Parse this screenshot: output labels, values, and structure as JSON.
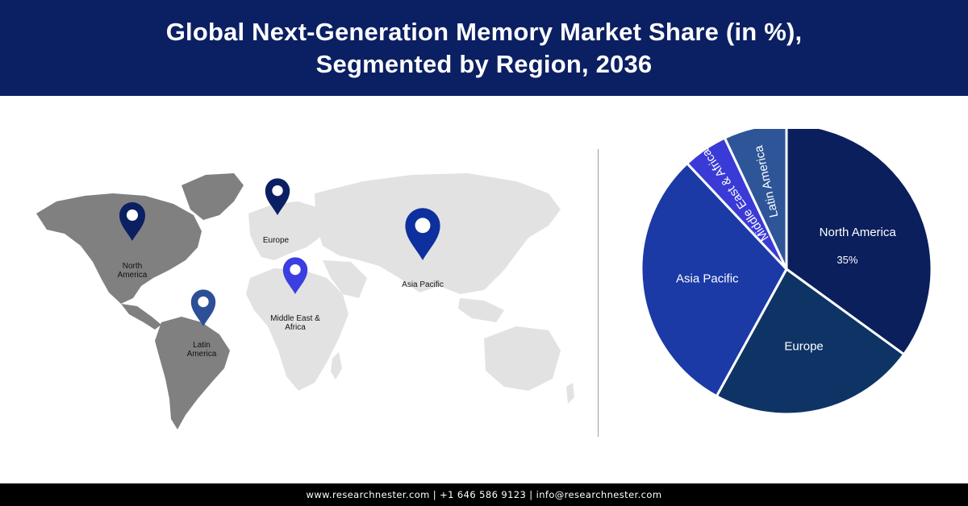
{
  "header": {
    "title_line1": "Global Next-Generation Memory Market Share (in %),",
    "title_line2": "Segmented by Region, 2036"
  },
  "map": {
    "pins": [
      {
        "name": "north-america",
        "label_lines": [
          "North",
          "America"
        ],
        "color": "#0b1f63"
      },
      {
        "name": "europe",
        "label_lines": [
          "Europe"
        ],
        "color": "#0b1f63"
      },
      {
        "name": "asia-pacific",
        "label_lines": [
          "Asia Pacific"
        ],
        "color": "#0e2f9e"
      },
      {
        "name": "middle-east-africa",
        "label_lines": [
          "Middle East &",
          "Africa"
        ],
        "color": "#3b3ee0"
      },
      {
        "name": "latin-america",
        "label_lines": [
          "Latin",
          "America"
        ],
        "color": "#2d4f96"
      }
    ]
  },
  "chart_data": {
    "type": "pie",
    "title": "Global Next-Generation Memory Market Share (in %), Segmented by Region, 2036",
    "slices": [
      {
        "label": "North America",
        "value": 35,
        "value_label": "35%",
        "color": "#0a1f5c"
      },
      {
        "label": "Europe",
        "value": 23,
        "value_label": "",
        "color": "#0e3466"
      },
      {
        "label": "Asia Pacific",
        "value": 30,
        "value_label": "",
        "color": "#1b3aa6"
      },
      {
        "label": "Middle East & Africa",
        "value": 5,
        "value_label": "",
        "color": "#3a3ad6"
      },
      {
        "label": "Latin America",
        "value": 7,
        "value_label": "",
        "color": "#2d5598"
      }
    ]
  },
  "footer": {
    "text": "www.researchnester.com  |  +1 646 586 9123  |  info@researchnester.com"
  }
}
